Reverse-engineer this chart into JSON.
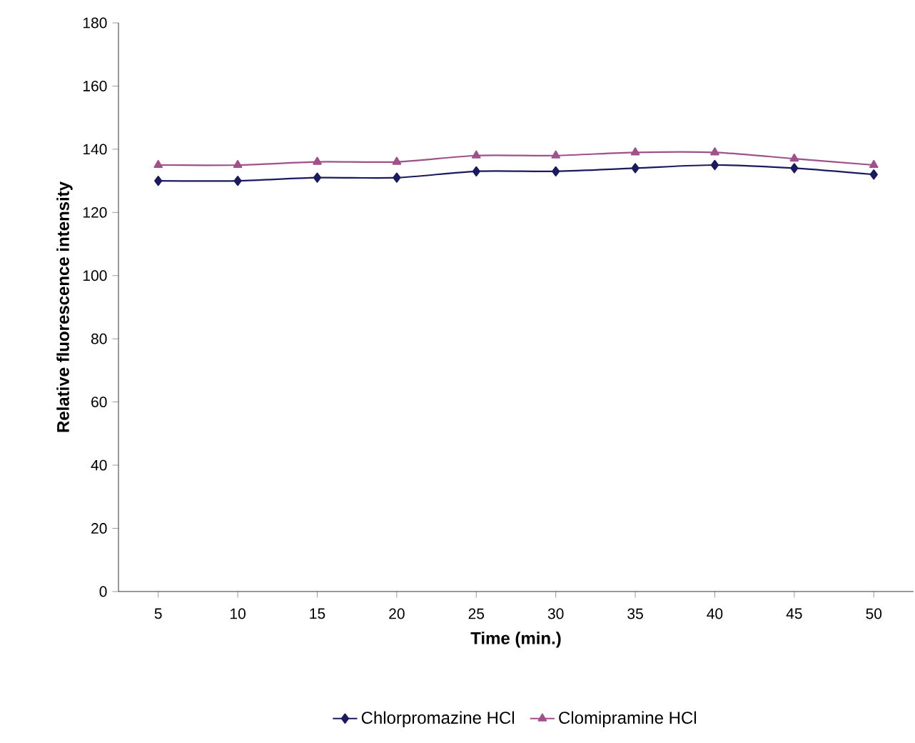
{
  "chart_data": {
    "type": "line",
    "xlabel": "Time (min.)",
    "ylabel": "Relative fluorescence intensity",
    "categories": [
      "5",
      "10",
      "15",
      "20",
      "25",
      "30",
      "35",
      "40",
      "45",
      "50"
    ],
    "series": [
      {
        "name": "Chlorpromazine HCl",
        "color": "#1a1a5e",
        "marker": "diamond",
        "values": [
          130,
          130,
          131,
          131,
          133,
          133,
          134,
          135,
          134,
          132
        ]
      },
      {
        "name": "Clomipramine HCl",
        "color": "#a0508a",
        "marker": "triangle",
        "values": [
          135,
          135,
          136,
          136,
          138,
          138,
          139,
          139,
          137,
          135
        ]
      }
    ],
    "ylim": [
      0,
      180
    ],
    "yticks": [
      0,
      20,
      40,
      60,
      80,
      100,
      120,
      140,
      160,
      180
    ],
    "grid": false,
    "legend": "bottom"
  }
}
